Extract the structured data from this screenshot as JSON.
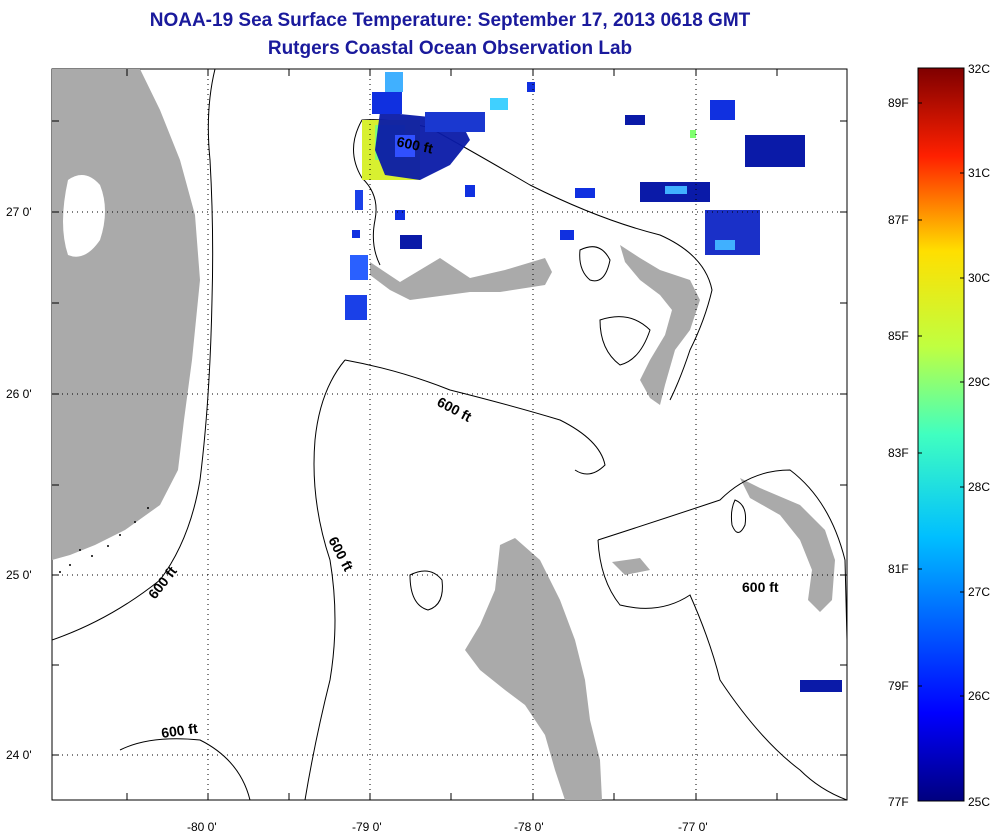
{
  "header": {
    "title": "NOAA-19 Sea Surface Temperature:  September 17, 2013 0618 GMT",
    "subtitle": "Rutgers Coastal Ocean Observation Lab"
  },
  "map": {
    "lon_labels": [
      "-80 0'",
      "-79 0'",
      "-78 0'",
      "-77 0'"
    ],
    "lat_labels": [
      "27 0'",
      "26 0'",
      "25 0'",
      "24 0'"
    ],
    "contour_labels": [
      "600 ft",
      "600 ft",
      "600 ft",
      "600 ft",
      "600 ft",
      "600 ft"
    ]
  },
  "colorbar": {
    "celsius": [
      "32C",
      "31C",
      "30C",
      "29C",
      "28C",
      "27C",
      "26C",
      "25C"
    ],
    "fahrenheit": [
      "89F",
      "87F",
      "85F",
      "83F",
      "81F",
      "79F",
      "77F"
    ]
  },
  "colors": {
    "land": "#aaaaaa",
    "title": "#1a1a9c",
    "sst_cold": "#0a1aa8",
    "sst_warm": "#7a0000"
  }
}
